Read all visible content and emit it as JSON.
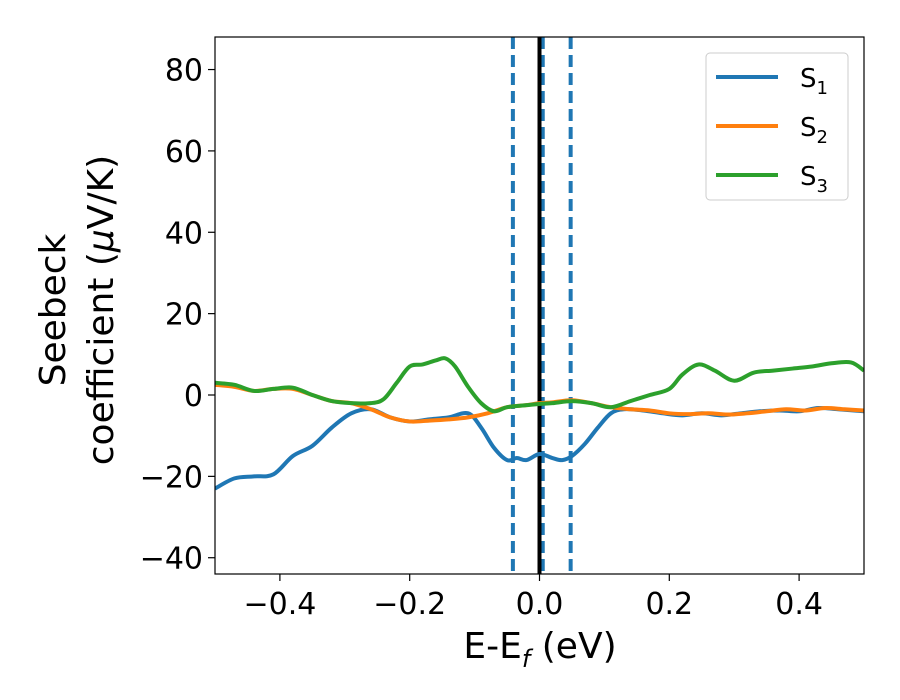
{
  "chart_data": {
    "type": "line",
    "xlabel": "E-E",
    "xlabel_sub": "f",
    "xlabel_unit": " (eV)",
    "ylabel_line1": "Seebeck",
    "ylabel_line2": "coefficient  (",
    "ylabel_mu": "μ",
    "ylabel_unit": "V/K)",
    "xlim": [
      -0.5,
      0.5
    ],
    "ylim": [
      -44,
      88
    ],
    "xticks": [
      -0.4,
      -0.2,
      0.0,
      0.2,
      0.4
    ],
    "xtick_labels": [
      "−0.4",
      "−0.2",
      "0.0",
      "0.2",
      "0.4"
    ],
    "yticks": [
      -40,
      -20,
      0,
      20,
      40,
      60,
      80
    ],
    "ytick_labels": [
      "−40",
      "−20",
      "0",
      "20",
      "40",
      "60",
      "80"
    ],
    "grid": false,
    "legend_position": "top-right",
    "vlines": [
      {
        "x": -0.041,
        "style": "dashed",
        "color": "#1f77b4"
      },
      {
        "x": 0.005,
        "style": "dashed",
        "color": "#1f77b4"
      },
      {
        "x": 0.048,
        "style": "dashed",
        "color": "#1f77b4"
      },
      {
        "x": 0.0,
        "style": "solid",
        "color": "#000000"
      }
    ],
    "series": [
      {
        "name": "S",
        "sub": "1",
        "color": "#1f77b4",
        "x": [
          -0.5,
          -0.47,
          -0.44,
          -0.41,
          -0.38,
          -0.35,
          -0.32,
          -0.29,
          -0.26,
          -0.23,
          -0.2,
          -0.17,
          -0.14,
          -0.11,
          -0.09,
          -0.07,
          -0.05,
          -0.035,
          -0.02,
          0.0,
          0.02,
          0.035,
          0.05,
          0.07,
          0.09,
          0.11,
          0.13,
          0.16,
          0.19,
          0.22,
          0.25,
          0.28,
          0.31,
          0.34,
          0.37,
          0.4,
          0.43,
          0.46,
          0.5
        ],
        "y": [
          -23,
          -20.5,
          -20,
          -19.5,
          -15,
          -12.5,
          -8,
          -4.5,
          -3.5,
          -5.5,
          -6.5,
          -6,
          -5.5,
          -4.5,
          -8,
          -13,
          -16,
          -15.5,
          -16,
          -14.5,
          -15.5,
          -16,
          -15,
          -12,
          -8,
          -4.5,
          -3.5,
          -3.8,
          -4.5,
          -5,
          -4.5,
          -5,
          -4.5,
          -4,
          -3.8,
          -4,
          -3.2,
          -3.5,
          -4
        ]
      },
      {
        "name": "S",
        "sub": "2",
        "color": "#ff7f0e",
        "x": [
          -0.5,
          -0.47,
          -0.44,
          -0.41,
          -0.38,
          -0.35,
          -0.32,
          -0.29,
          -0.26,
          -0.23,
          -0.2,
          -0.17,
          -0.14,
          -0.11,
          -0.08,
          -0.05,
          -0.02,
          0.0,
          0.02,
          0.05,
          0.08,
          0.11,
          0.14,
          0.17,
          0.2,
          0.23,
          0.26,
          0.29,
          0.32,
          0.35,
          0.38,
          0.41,
          0.44,
          0.47,
          0.5
        ],
        "y": [
          2.5,
          2,
          1,
          1.5,
          1.5,
          0,
          -1.5,
          -2,
          -3.5,
          -5.5,
          -6.5,
          -6.3,
          -6,
          -5.5,
          -4.5,
          -3,
          -2.5,
          -2,
          -1.8,
          -1.3,
          -2,
          -3,
          -3.5,
          -3.8,
          -4.5,
          -4.7,
          -4.5,
          -4.8,
          -4.5,
          -4,
          -3.5,
          -3.8,
          -3.2,
          -3.5,
          -3.8
        ]
      },
      {
        "name": "S",
        "sub": "3",
        "color": "#2ca02c",
        "x": [
          -0.5,
          -0.47,
          -0.44,
          -0.41,
          -0.38,
          -0.35,
          -0.32,
          -0.29,
          -0.26,
          -0.24,
          -0.22,
          -0.2,
          -0.18,
          -0.16,
          -0.145,
          -0.13,
          -0.11,
          -0.09,
          -0.07,
          -0.05,
          -0.02,
          0.0,
          0.02,
          0.05,
          0.08,
          0.11,
          0.14,
          0.17,
          0.2,
          0.22,
          0.245,
          0.27,
          0.3,
          0.33,
          0.36,
          0.39,
          0.42,
          0.45,
          0.48,
          0.5
        ],
        "y": [
          3,
          2.5,
          1,
          1.5,
          1.8,
          0,
          -1.5,
          -2,
          -2,
          -1,
          3,
          7,
          7.5,
          8.5,
          9,
          7,
          2,
          -2,
          -4,
          -3,
          -2.5,
          -2.2,
          -2,
          -1.5,
          -2,
          -3,
          -1.5,
          0,
          1.5,
          5,
          7.5,
          6,
          3.5,
          5.5,
          6,
          6.5,
          7,
          7.8,
          8,
          6
        ]
      }
    ]
  }
}
